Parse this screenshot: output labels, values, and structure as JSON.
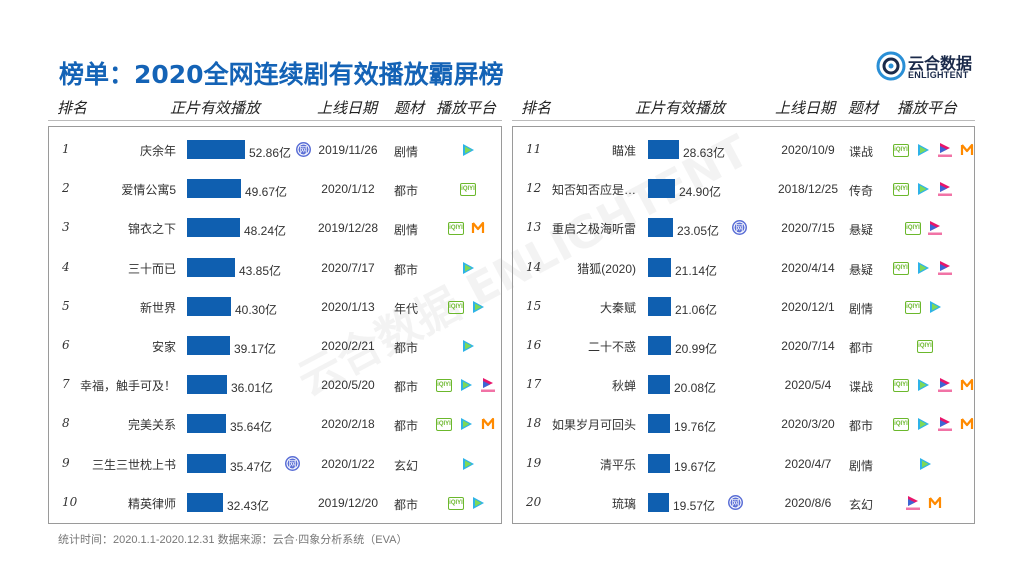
{
  "title": "榜单：2020全网连续剧有效播放霸屏榜",
  "logo": {
    "cn": "云合数据",
    "en": "ENLIGHTENT"
  },
  "watermark": "云合数据 ENLIGHTENT",
  "headers": {
    "rank": "排名",
    "plays": "正片有效播放",
    "date": "上线日期",
    "genre": "题材",
    "platform": "播放平台"
  },
  "footer": "统计时间：2020.1.1-2020.12.31    数据来源：云合·四象分析系统（EVA）",
  "chart_data": {
    "type": "bar",
    "unit": "亿",
    "max_value": 52.86,
    "rows": [
      {
        "rank": "1",
        "name": "庆余年",
        "value": 52.86,
        "value_label": "52.86亿",
        "date": "2019/11/26",
        "genre": "剧情",
        "platforms": [
          "net-icon",
          "tencent-icon"
        ],
        "plat_after": "value"
      },
      {
        "rank": "2",
        "name": "爱情公寓5",
        "value": 49.67,
        "value_label": "49.67亿",
        "date": "2020/1/12",
        "genre": "都市",
        "platforms": [
          "iqiyi-icon"
        ]
      },
      {
        "rank": "3",
        "name": "锦衣之下",
        "value": 48.24,
        "value_label": "48.24亿",
        "date": "2019/12/28",
        "genre": "剧情",
        "platforms": [
          "iqiyi-icon",
          "mango-icon"
        ]
      },
      {
        "rank": "4",
        "name": "三十而已",
        "value": 43.85,
        "value_label": "43.85亿",
        "date": "2020/7/17",
        "genre": "都市",
        "platforms": [
          "tencent-icon"
        ]
      },
      {
        "rank": "5",
        "name": "新世界",
        "value": 40.3,
        "value_label": "40.30亿",
        "date": "2020/1/13",
        "genre": "年代",
        "platforms": [
          "iqiyi-icon",
          "tencent-icon"
        ]
      },
      {
        "rank": "6",
        "name": "安家",
        "value": 39.17,
        "value_label": "39.17亿",
        "date": "2020/2/21",
        "genre": "都市",
        "platforms": [
          "tencent-icon"
        ]
      },
      {
        "rank": "7",
        "name": "幸福，触手可及！",
        "value": 36.01,
        "value_label": "36.01亿",
        "date": "2020/5/20",
        "genre": "都市",
        "platforms": [
          "iqiyi-icon",
          "tencent-icon",
          "youku-icon"
        ]
      },
      {
        "rank": "8",
        "name": "完美关系",
        "value": 35.64,
        "value_label": "35.64亿",
        "date": "2020/2/18",
        "genre": "都市",
        "platforms": [
          "iqiyi-icon",
          "tencent-icon",
          "mango-icon"
        ]
      },
      {
        "rank": "9",
        "name": "三生三世枕上书",
        "value": 35.47,
        "value_label": "35.47亿",
        "date": "2020/1/22",
        "genre": "玄幻",
        "platforms": [
          "tencent-icon"
        ],
        "net_after_value": true
      },
      {
        "rank": "10",
        "name": "精英律师",
        "value": 32.43,
        "value_label": "32.43亿",
        "date": "2019/12/20",
        "genre": "都市",
        "platforms": [
          "iqiyi-icon",
          "tencent-icon"
        ]
      },
      {
        "rank": "11",
        "name": "瞄准",
        "value": 28.63,
        "value_label": "28.63亿",
        "date": "2020/10/9",
        "genre": "谍战",
        "platforms": [
          "iqiyi-icon",
          "tencent-icon",
          "youku-icon",
          "mango-icon"
        ]
      },
      {
        "rank": "12",
        "name": "知否知否应是…",
        "value": 24.9,
        "value_label": "24.90亿",
        "date": "2018/12/25",
        "genre": "传奇",
        "platforms": [
          "iqiyi-icon",
          "tencent-icon",
          "youku-icon"
        ]
      },
      {
        "rank": "13",
        "name": "重启之极海听雷",
        "value": 23.05,
        "value_label": "23.05亿",
        "date": "2020/7/15",
        "genre": "悬疑",
        "platforms": [
          "iqiyi-icon",
          "youku-icon"
        ],
        "net_after_value": true
      },
      {
        "rank": "14",
        "name": "猎狐(2020)",
        "value": 21.14,
        "value_label": "21.14亿",
        "date": "2020/4/14",
        "genre": "悬疑",
        "platforms": [
          "iqiyi-icon",
          "tencent-icon",
          "youku-icon"
        ]
      },
      {
        "rank": "15",
        "name": "大秦赋",
        "value": 21.06,
        "value_label": "21.06亿",
        "date": "2020/12/1",
        "genre": "剧情",
        "platforms": [
          "iqiyi-icon",
          "tencent-icon"
        ]
      },
      {
        "rank": "16",
        "name": "二十不惑",
        "value": 20.99,
        "value_label": "20.99亿",
        "date": "2020/7/14",
        "genre": "都市",
        "platforms": [
          "iqiyi-icon"
        ]
      },
      {
        "rank": "17",
        "name": "秋蝉",
        "value": 20.08,
        "value_label": "20.08亿",
        "date": "2020/5/4",
        "genre": "谍战",
        "platforms": [
          "iqiyi-icon",
          "tencent-icon",
          "youku-icon",
          "mango-icon"
        ]
      },
      {
        "rank": "18",
        "name": "如果岁月可回头",
        "value": 19.76,
        "value_label": "19.76亿",
        "date": "2020/3/20",
        "genre": "都市",
        "platforms": [
          "iqiyi-icon",
          "tencent-icon",
          "youku-icon",
          "mango-icon"
        ]
      },
      {
        "rank": "19",
        "name": "清平乐",
        "value": 19.67,
        "value_label": "19.67亿",
        "date": "2020/4/7",
        "genre": "剧情",
        "platforms": [
          "tencent-icon"
        ]
      },
      {
        "rank": "20",
        "name": "琉璃",
        "value": 19.57,
        "value_label": "19.57亿",
        "date": "2020/8/6",
        "genre": "玄幻",
        "platforms": [
          "youku-icon",
          "mango-icon"
        ],
        "net_after_value": true
      }
    ]
  },
  "colors": {
    "title": "#1463b6",
    "bar": "#0f5fb0",
    "iqiyi": "#6bb82c",
    "tencent": "#2eb3e8",
    "youku": "#e8156b",
    "mango": "#ff8a00",
    "net": "#5b6fd6"
  }
}
